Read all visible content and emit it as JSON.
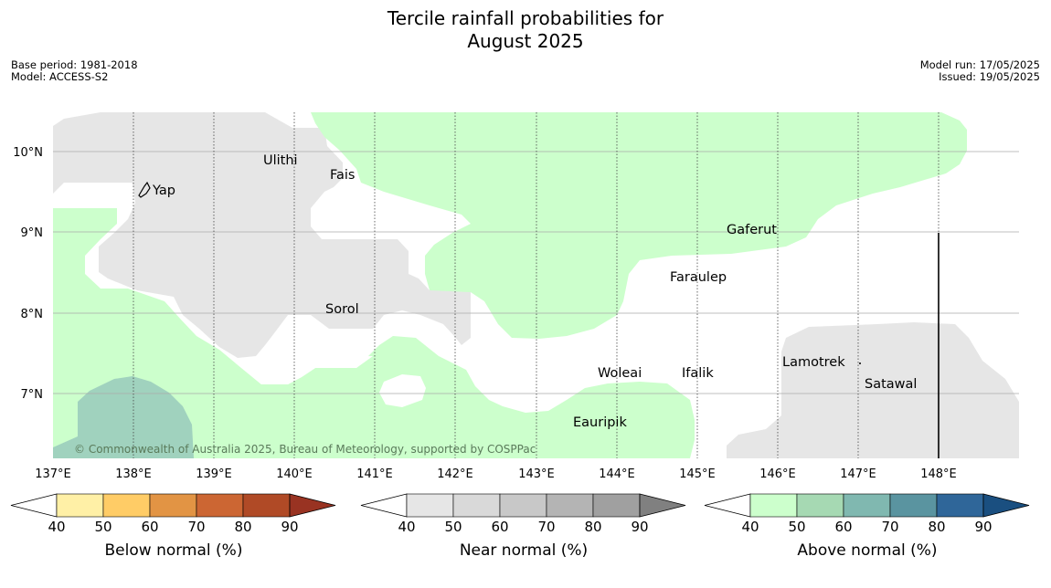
{
  "title": {
    "line1": "Tercile rainfall probabilities for",
    "line2": "August 2025"
  },
  "meta_left": {
    "base_period": "Base period: 1981-2018",
    "model": "Model: ACCESS-S2"
  },
  "meta_right": {
    "model_run": "Model run: 17/05/2025",
    "issued": "Issued: 19/05/2025"
  },
  "map": {
    "lat_labels": [
      "10°N",
      "9°N",
      "8°N",
      "7°N"
    ],
    "lon_labels": [
      "137°E",
      "138°E",
      "139°E",
      "140°E",
      "141°E",
      "142°E",
      "143°E",
      "144°E",
      "145°E",
      "146°E",
      "147°E",
      "148°E"
    ],
    "places": [
      "Yap",
      "Ulithi",
      "Fais",
      "Gaferut",
      "Faraulep",
      "Sorol",
      "Woleai",
      "Ifalik",
      "Lamotrek",
      "Satawal",
      "Eauripik"
    ],
    "copyright": "© Commonwealth of Australia 2025, Bureau of Meteorology, supported by COSPPac"
  },
  "legend": {
    "ticks": [
      "40",
      "50",
      "60",
      "70",
      "80",
      "90"
    ],
    "below_label": "Below normal (%)",
    "near_label": "Near normal (%)",
    "above_label": "Above normal (%)",
    "below_colors": [
      "#fff0a6",
      "#ffcc66",
      "#e29444",
      "#cc6633",
      "#b04a26",
      "#993322"
    ],
    "near_colors": [
      "#e6e6e6",
      "#d9d9d9",
      "#c8c8c8",
      "#b4b4b4",
      "#a0a0a0",
      "#808080"
    ],
    "above_colors": [
      "#ccffcc",
      "#a6d9b3",
      "#80b8b0",
      "#5a94a0",
      "#2f6699",
      "#1a4f80"
    ]
  }
}
